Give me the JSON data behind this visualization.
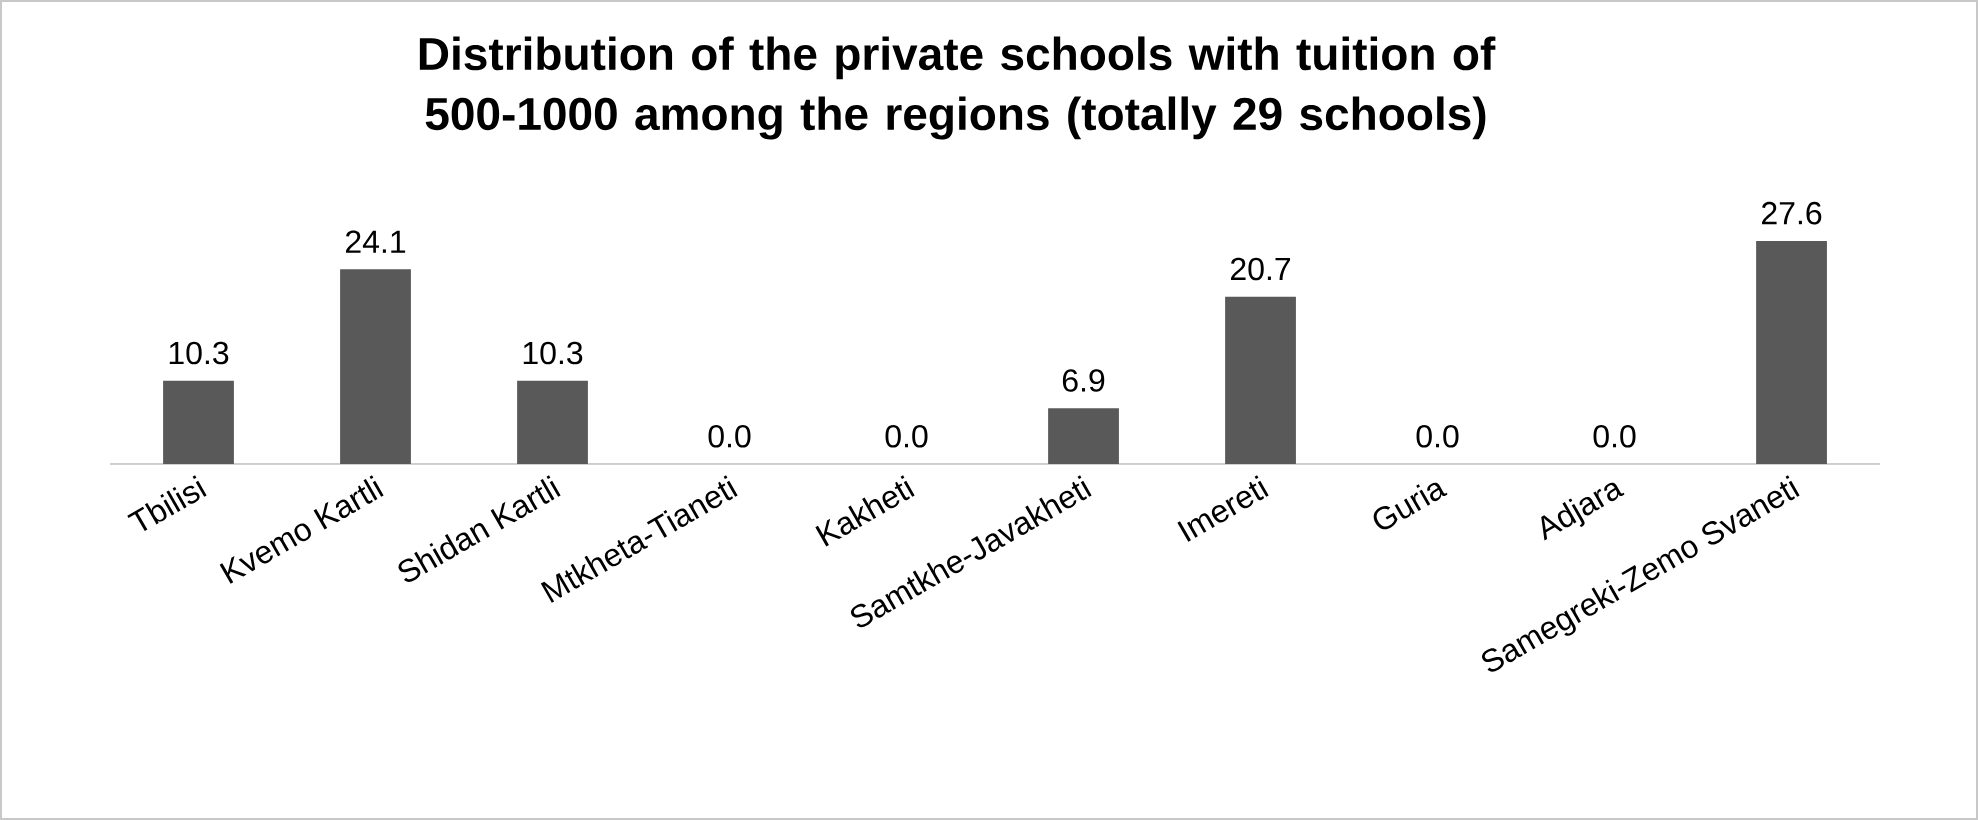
{
  "chart_data": {
    "type": "bar",
    "title": "Distribution of the private schools with tuition of 500-1000 among the regions (totally 29 schools)",
    "categories": [
      "Tbilisi",
      "Kvemo Kartli",
      "Shidan Kartli",
      "Mtkheta-Tianeti",
      "Kakheti",
      "Samtkhe-Javakheti",
      "Imereti",
      "Guria",
      "Adjara",
      "Samegreki-Zemo Svaneti"
    ],
    "values": [
      10.3,
      24.1,
      10.3,
      0.0,
      0.0,
      6.9,
      20.7,
      0.0,
      0.0,
      27.6
    ],
    "value_labels": [
      "10.3",
      "24.1",
      "10.3",
      "0.0",
      "0.0",
      "6.9",
      "20.7",
      "0.0",
      "0.0",
      "27.6"
    ],
    "color": "#595959"
  }
}
